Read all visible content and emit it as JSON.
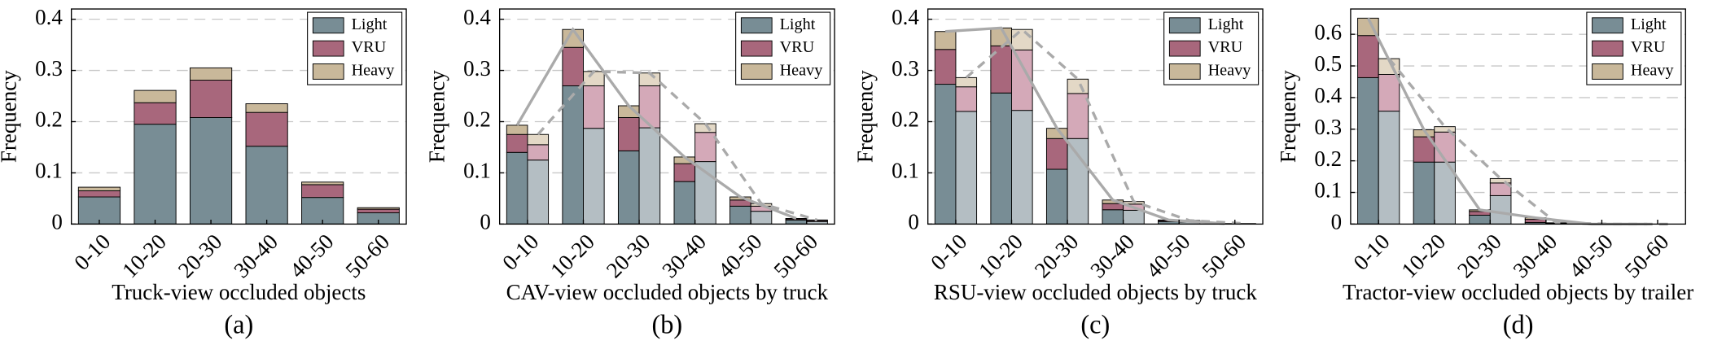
{
  "chart_data": [
    {
      "type": "bar",
      "stacked": true,
      "xlabel": "Truck-view occluded objects",
      "caption": "(a)",
      "ylabel": "Frequency",
      "categories": [
        "0-10",
        "10-20",
        "20-30",
        "30-40",
        "40-50",
        "50-60"
      ],
      "ylim": [
        0,
        0.42
      ],
      "yticks": [
        0,
        0.1,
        0.2,
        0.3,
        0.4
      ],
      "grid": true,
      "legend": "upper right",
      "series": [
        {
          "name": "Light",
          "color": "#788d95",
          "values": [
            0.053,
            0.195,
            0.208,
            0.152,
            0.052,
            0.022
          ]
        },
        {
          "name": "VRU",
          "color": "#a8677c",
          "values": [
            0.012,
            0.042,
            0.073,
            0.066,
            0.025,
            0.007
          ]
        },
        {
          "name": "Heavy",
          "color": "#c9b89a",
          "values": [
            0.007,
            0.024,
            0.024,
            0.017,
            0.005,
            0.003
          ]
        }
      ]
    },
    {
      "type": "bar",
      "stacked": true,
      "xlabel": "CAV-view occluded objects by truck",
      "caption": "(b)",
      "ylabel": "Frequency",
      "categories": [
        "0-10",
        "10-20",
        "20-30",
        "30-40",
        "40-50",
        "50-60"
      ],
      "ylim": [
        0,
        0.42
      ],
      "yticks": [
        0,
        0.1,
        0.2,
        0.3,
        0.4
      ],
      "grid": true,
      "legend": "upper right",
      "series": [
        {
          "name": "Light",
          "color": "#788d95",
          "values": [
            0.14,
            0.27,
            0.143,
            0.083,
            0.035,
            0.008
          ]
        },
        {
          "name": "VRU",
          "color": "#a8677c",
          "values": [
            0.035,
            0.075,
            0.065,
            0.035,
            0.012,
            0.002
          ]
        },
        {
          "name": "Heavy",
          "color": "#c9b89a",
          "values": [
            0.018,
            0.035,
            0.023,
            0.013,
            0.006,
            0.001
          ]
        }
      ],
      "series2": [
        {
          "color": "#b4bec3",
          "values": [
            0.125,
            0.187,
            0.188,
            0.122,
            0.025,
            0.005
          ]
        },
        {
          "color": "#d4a9b8",
          "values": [
            0.03,
            0.083,
            0.082,
            0.057,
            0.01,
            0.002
          ]
        },
        {
          "color": "#e3d8c6",
          "values": [
            0.02,
            0.028,
            0.025,
            0.017,
            0.005,
            0.001
          ]
        }
      ]
    },
    {
      "type": "bar",
      "stacked": true,
      "xlabel": "RSU-view occluded objects by truck",
      "caption": "(c)",
      "ylabel": "Frequency",
      "categories": [
        "0-10",
        "10-20",
        "20-30",
        "30-40",
        "40-50",
        "50-60"
      ],
      "ylim": [
        0,
        0.42
      ],
      "yticks": [
        0,
        0.1,
        0.2,
        0.3,
        0.4
      ],
      "grid": true,
      "legend": "upper right",
      "series": [
        {
          "name": "Light",
          "color": "#788d95",
          "values": [
            0.273,
            0.256,
            0.107,
            0.028,
            0.005,
            0.001
          ]
        },
        {
          "name": "VRU",
          "color": "#a8677c",
          "values": [
            0.068,
            0.092,
            0.06,
            0.012,
            0.002,
            0
          ]
        },
        {
          "name": "Heavy",
          "color": "#c9b89a",
          "values": [
            0.035,
            0.035,
            0.02,
            0.007,
            0.001,
            0
          ]
        }
      ],
      "series2": [
        {
          "color": "#b4bec3",
          "values": [
            0.22,
            0.222,
            0.167,
            0.027,
            0.004,
            0.001
          ]
        },
        {
          "color": "#d4a9b8",
          "values": [
            0.048,
            0.118,
            0.088,
            0.012,
            0.002,
            0
          ]
        },
        {
          "color": "#e3d8c6",
          "values": [
            0.018,
            0.04,
            0.028,
            0.005,
            0.001,
            0
          ]
        }
      ]
    },
    {
      "type": "bar",
      "stacked": true,
      "xlabel": "Tractor-view occluded objects by trailer",
      "caption": "(d)",
      "ylabel": "Frequency",
      "categories": [
        "0-10",
        "10-20",
        "20-30",
        "30-40",
        "40-50",
        "50-60"
      ],
      "ylim": [
        0,
        0.68
      ],
      "yticks": [
        0,
        0.1,
        0.2,
        0.3,
        0.4,
        0.5,
        0.6
      ],
      "grid": true,
      "legend": "upper right",
      "series": [
        {
          "name": "Light",
          "color": "#788d95",
          "values": [
            0.463,
            0.196,
            0.028,
            0.005,
            0,
            0
          ]
        },
        {
          "name": "VRU",
          "color": "#a8677c",
          "values": [
            0.133,
            0.08,
            0.012,
            0.01,
            0,
            0
          ]
        },
        {
          "name": "Heavy",
          "color": "#c9b89a",
          "values": [
            0.055,
            0.022,
            0.005,
            0.005,
            0,
            0
          ]
        }
      ],
      "series2": [
        {
          "color": "#b4bec3",
          "values": [
            0.357,
            0.196,
            0.09,
            0.002,
            0,
            0
          ]
        },
        {
          "color": "#d4a9b8",
          "values": [
            0.116,
            0.095,
            0.04,
            0.001,
            0,
            0
          ]
        },
        {
          "color": "#e3d8c6",
          "values": [
            0.05,
            0.017,
            0.014,
            0.001,
            0,
            0
          ]
        }
      ]
    }
  ]
}
